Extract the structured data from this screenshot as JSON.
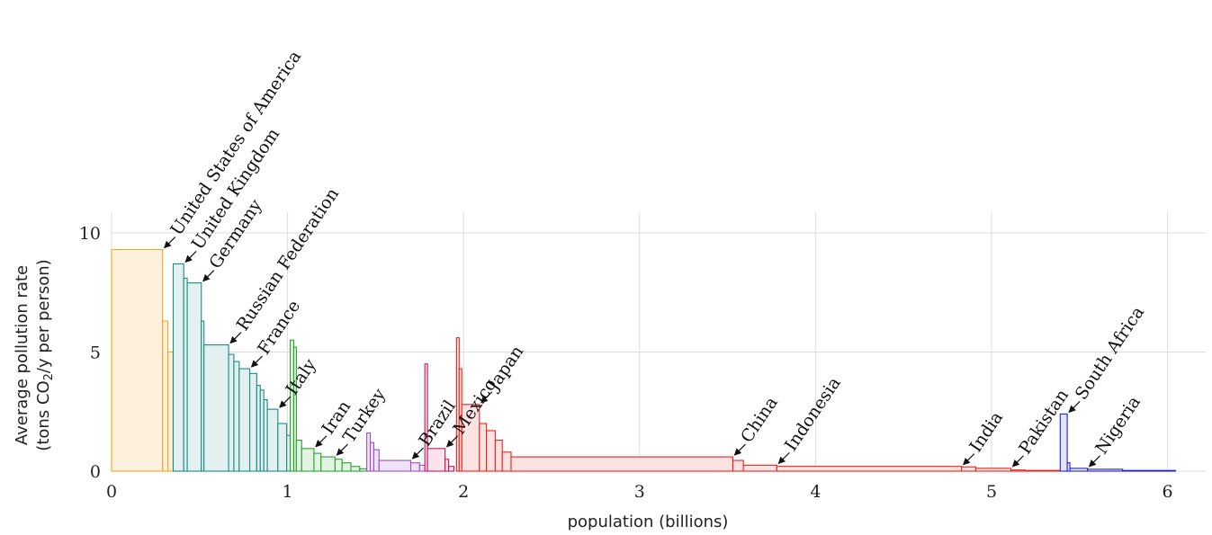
{
  "chart_data": {
    "type": "bar",
    "xlabel": "population (billions)",
    "ylabel_line1": "Average pollution rate",
    "ylabel_line2_prefix": "(tons CO",
    "ylabel_line2_sub": "2",
    "ylabel_line2_suffix": "/y per person)",
    "xlim": [
      0,
      6.15
    ],
    "ylim": [
      0,
      10.9
    ],
    "x_ticks": [
      {
        "value": 0,
        "label": "0"
      },
      {
        "value": 1,
        "label": "1"
      },
      {
        "value": 2,
        "label": "2"
      },
      {
        "value": 3,
        "label": "3"
      },
      {
        "value": 4,
        "label": "4"
      },
      {
        "value": 5,
        "label": "5"
      },
      {
        "value": 6,
        "label": "6"
      }
    ],
    "y_ticks": [
      {
        "value": 0,
        "label": "0"
      },
      {
        "value": 5,
        "label": "5"
      },
      {
        "value": 10,
        "label": "10"
      }
    ],
    "grid": true,
    "groups": [
      {
        "color": "#f5a623",
        "fill": "#fdf0dc",
        "bars": [
          {
            "start": 0.0,
            "width": 0.29,
            "value": 9.3
          },
          {
            "start": 0.29,
            "width": 0.03,
            "value": 6.3
          },
          {
            "start": 0.32,
            "width": 0.03,
            "value": 5.0
          }
        ]
      },
      {
        "color": "#1a8a8a",
        "fill": "#e2f0f0",
        "bars": [
          {
            "start": 0.35,
            "width": 0.06,
            "value": 8.7
          },
          {
            "start": 0.41,
            "width": 0.02,
            "value": 8.1
          },
          {
            "start": 0.43,
            "width": 0.08,
            "value": 7.9
          },
          {
            "start": 0.51,
            "width": 0.015,
            "value": 6.3
          },
          {
            "start": 0.525,
            "width": 0.14,
            "value": 5.3
          },
          {
            "start": 0.665,
            "width": 0.03,
            "value": 4.9
          },
          {
            "start": 0.695,
            "width": 0.03,
            "value": 4.6
          },
          {
            "start": 0.725,
            "width": 0.06,
            "value": 4.3
          },
          {
            "start": 0.785,
            "width": 0.04,
            "value": 4.1
          },
          {
            "start": 0.825,
            "width": 0.02,
            "value": 3.6
          },
          {
            "start": 0.845,
            "width": 0.02,
            "value": 3.4
          },
          {
            "start": 0.865,
            "width": 0.02,
            "value": 3.0
          },
          {
            "start": 0.885,
            "width": 0.06,
            "value": 2.6
          },
          {
            "start": 0.945,
            "width": 0.05,
            "value": 2.0
          },
          {
            "start": 0.995,
            "width": 0.02,
            "value": 1.5
          }
        ]
      },
      {
        "color": "#2ea02e",
        "fill": "#e3f3e3",
        "bars": [
          {
            "start": 1.015,
            "width": 0.02,
            "value": 5.5
          },
          {
            "start": 1.035,
            "width": 0.015,
            "value": 5.2
          },
          {
            "start": 1.05,
            "width": 0.03,
            "value": 1.3
          },
          {
            "start": 1.08,
            "width": 0.07,
            "value": 0.95
          },
          {
            "start": 1.15,
            "width": 0.04,
            "value": 0.75
          },
          {
            "start": 1.19,
            "width": 0.08,
            "value": 0.6
          },
          {
            "start": 1.27,
            "width": 0.04,
            "value": 0.5
          },
          {
            "start": 1.31,
            "width": 0.05,
            "value": 0.35
          },
          {
            "start": 1.36,
            "width": 0.05,
            "value": 0.2
          },
          {
            "start": 1.41,
            "width": 0.04,
            "value": 0.1
          }
        ]
      },
      {
        "color": "#9b4fc7",
        "fill": "#efe3f7",
        "bars": [
          {
            "start": 1.45,
            "width": 0.02,
            "value": 1.6
          },
          {
            "start": 1.47,
            "width": 0.02,
            "value": 1.2
          },
          {
            "start": 1.49,
            "width": 0.03,
            "value": 0.9
          },
          {
            "start": 1.52,
            "width": 0.18,
            "value": 0.45
          },
          {
            "start": 1.7,
            "width": 0.05,
            "value": 0.35
          },
          {
            "start": 1.75,
            "width": 0.03,
            "value": 0.25
          }
        ]
      },
      {
        "color": "#c2185b",
        "fill": "#fbe3ec",
        "bars": [
          {
            "start": 1.78,
            "width": 0.015,
            "value": 4.5
          },
          {
            "start": 1.795,
            "width": 0.1,
            "value": 0.95
          },
          {
            "start": 1.895,
            "width": 0.02,
            "value": 0.5
          },
          {
            "start": 1.915,
            "width": 0.03,
            "value": 0.2
          }
        ]
      },
      {
        "color": "#e8231f",
        "fill": "#fde2e2",
        "bars": [
          {
            "start": 1.96,
            "width": 0.015,
            "value": 5.6
          },
          {
            "start": 1.975,
            "width": 0.015,
            "value": 4.3
          },
          {
            "start": 1.99,
            "width": 0.1,
            "value": 2.8
          },
          {
            "start": 2.09,
            "width": 0.04,
            "value": 2.0
          },
          {
            "start": 2.13,
            "width": 0.05,
            "value": 1.7
          },
          {
            "start": 2.18,
            "width": 0.04,
            "value": 1.3
          },
          {
            "start": 2.22,
            "width": 0.05,
            "value": 0.8
          },
          {
            "start": 2.27,
            "width": 1.26,
            "value": 0.6
          },
          {
            "start": 3.53,
            "width": 0.06,
            "value": 0.45
          },
          {
            "start": 3.59,
            "width": 0.19,
            "value": 0.25
          },
          {
            "start": 3.78,
            "width": 1.05,
            "value": 0.2
          },
          {
            "start": 4.83,
            "width": 0.08,
            "value": 0.18
          },
          {
            "start": 4.91,
            "width": 0.2,
            "value": 0.12
          },
          {
            "start": 5.11,
            "width": 0.08,
            "value": 0.05
          },
          {
            "start": 5.19,
            "width": 0.2,
            "value": 0.03
          }
        ]
      },
      {
        "color": "#2323c8",
        "fill": "#e3e3f9",
        "bars": [
          {
            "start": 5.39,
            "width": 0.04,
            "value": 2.4
          },
          {
            "start": 5.43,
            "width": 0.015,
            "value": 0.35
          },
          {
            "start": 5.445,
            "width": 0.1,
            "value": 0.12
          },
          {
            "start": 5.545,
            "width": 0.2,
            "value": 0.08
          },
          {
            "start": 5.745,
            "width": 0.3,
            "value": 0.03
          }
        ]
      }
    ],
    "annotations": [
      {
        "label": "United States of America",
        "x": 0.29,
        "y": 9.3
      },
      {
        "label": "United Kingdom",
        "x": 0.41,
        "y": 8.7
      },
      {
        "label": "Germany",
        "x": 0.51,
        "y": 7.9
      },
      {
        "label": "Russian Federation",
        "x": 0.665,
        "y": 5.3
      },
      {
        "label": "France",
        "x": 0.785,
        "y": 4.3
      },
      {
        "label": "Italy",
        "x": 0.945,
        "y": 2.6
      },
      {
        "label": "Iran",
        "x": 1.15,
        "y": 0.95
      },
      {
        "label": "Turkey",
        "x": 1.27,
        "y": 0.6
      },
      {
        "label": "Brazil",
        "x": 1.7,
        "y": 0.45
      },
      {
        "label": "Mexico",
        "x": 1.895,
        "y": 0.95
      },
      {
        "label": "Japan",
        "x": 2.09,
        "y": 2.8
      },
      {
        "label": "China",
        "x": 3.53,
        "y": 0.6
      },
      {
        "label": "Indonesia",
        "x": 3.78,
        "y": 0.25
      },
      {
        "label": "India",
        "x": 4.83,
        "y": 0.2
      },
      {
        "label": "Pakistan",
        "x": 5.11,
        "y": 0.12
      },
      {
        "label": "South Africa",
        "x": 5.43,
        "y": 2.4
      },
      {
        "label": "Nigeria",
        "x": 5.545,
        "y": 0.12
      }
    ]
  }
}
